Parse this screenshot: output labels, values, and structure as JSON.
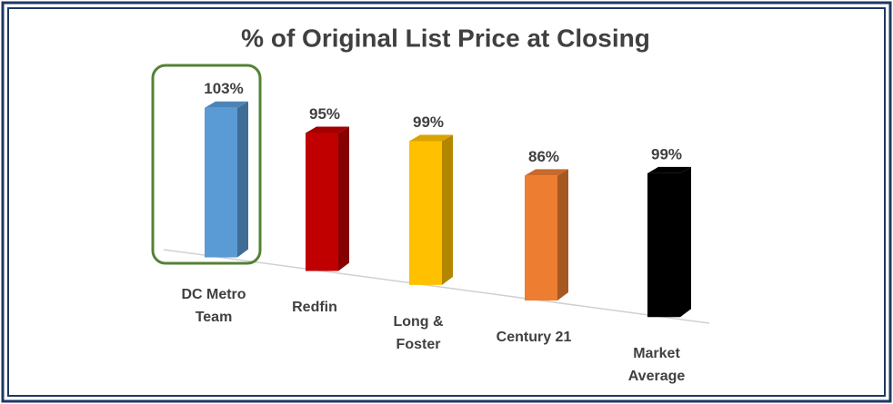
{
  "chart_data": {
    "type": "bar3d",
    "title": "% of Original List Price at Closing",
    "categories": [
      "DC Metro Team",
      "Redfin",
      "Long & Foster",
      "Century 21",
      "Market Average"
    ],
    "values": [
      103,
      95,
      99,
      86,
      99
    ],
    "value_labels": [
      "103%",
      "95%",
      "99%",
      "86%",
      "99%"
    ],
    "colors": [
      "#5b9bd5",
      "#c00000",
      "#ffc000",
      "#ed7d31",
      "#000000"
    ]
  }
}
